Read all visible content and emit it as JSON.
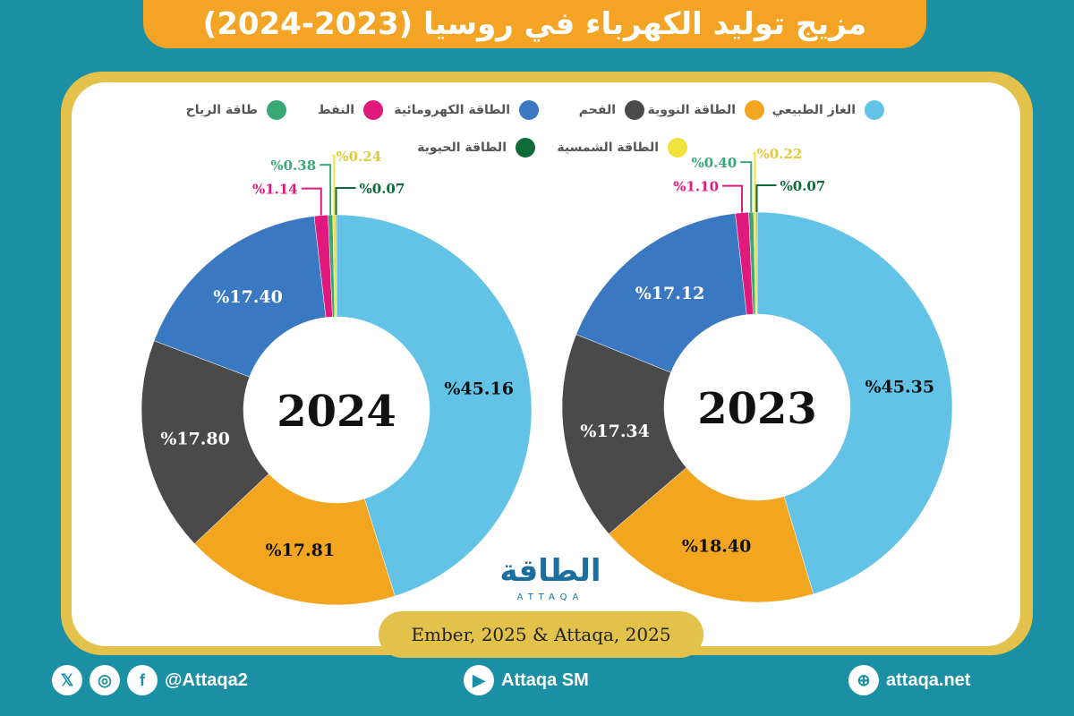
{
  "header": {
    "title": "مزيج توليد الكهرباء في روسيا (2023-2024)"
  },
  "legend": [
    {
      "label": "الغاز الطبيعي",
      "color": "#63c3e6"
    },
    {
      "label": "الطاقة النووية",
      "color": "#f2a51f"
    },
    {
      "label": "الفحم",
      "color": "#4a4a4a"
    },
    {
      "label": "الطاقة الكهرومائية",
      "color": "#3a79c2"
    },
    {
      "label": "النفط",
      "color": "#e0197c"
    },
    {
      "label": "طاقة الرياح",
      "color": "#3aa876"
    },
    {
      "label": "الطاقة الشمسية",
      "color": "#f0e43a"
    },
    {
      "label": "الطاقة الحيوية",
      "color": "#0f6a3a"
    }
  ],
  "chart_data": [
    {
      "type": "pie",
      "center_label": "2024",
      "categories": [
        "الغاز الطبيعي",
        "الطاقة النووية",
        "الفحم",
        "الطاقة الكهرومائية",
        "النفط",
        "طاقة الرياح",
        "الطاقة الشمسية",
        "الطاقة الحيوية"
      ],
      "values": [
        45.16,
        17.81,
        17.8,
        17.4,
        1.14,
        0.38,
        0.24,
        0.07
      ],
      "labels": [
        "%45.16",
        "%17.81",
        "%17.80",
        "%17.40",
        "%1.14",
        "%0.38",
        "%0.24",
        "%0.07"
      ]
    },
    {
      "type": "pie",
      "center_label": "2023",
      "categories": [
        "الغاز الطبيعي",
        "الطاقة النووية",
        "الفحم",
        "الطاقة الكهرومائية",
        "النفط",
        "طاقة الرياح",
        "الطاقة الشمسية",
        "الطاقة الحيوية"
      ],
      "values": [
        45.35,
        18.4,
        17.34,
        17.12,
        1.1,
        0.4,
        0.22,
        0.07
      ],
      "labels": [
        "%45.35",
        "%18.40",
        "%17.34",
        "%17.12",
        "%1.10",
        "%0.40",
        "%0.22",
        "%0.07"
      ]
    }
  ],
  "source": {
    "text": "Ember, 2025 & Attaqa, 2025"
  },
  "logo": {
    "arabic": "الطاقة",
    "english": "ATTAQA"
  },
  "footer": {
    "social_handle": "@Attaqa2",
    "youtube": "Attaqa SM",
    "website": "attaqa.net"
  }
}
